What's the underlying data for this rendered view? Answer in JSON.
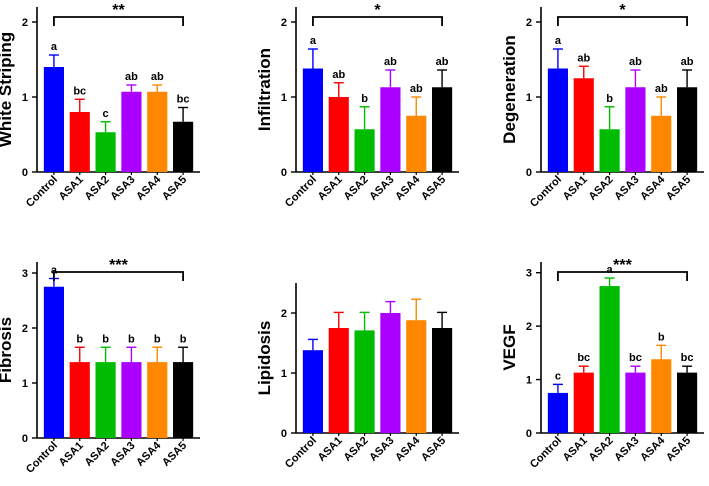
{
  "colors": {
    "Control": "#0000ff",
    "ASA1": "#ff0000",
    "ASA2": "#00bb00",
    "ASA3": "#aa00ff",
    "ASA4": "#ff8800",
    "ASA5": "#000000"
  },
  "chart_data": [
    {
      "type": "bar",
      "title": "",
      "xlabel": "",
      "ylabel": "White Striping",
      "categories": [
        "Control",
        "ASA1",
        "ASA2",
        "ASA3",
        "ASA4",
        "ASA5"
      ],
      "values": [
        1.4,
        0.8,
        0.53,
        1.07,
        1.07,
        0.67
      ],
      "errors": [
        0.16,
        0.17,
        0.14,
        0.09,
        0.09,
        0.19
      ],
      "letters": [
        "a",
        "bc",
        "c",
        "ab",
        "ab",
        "bc"
      ],
      "ylim": [
        0,
        2.2
      ],
      "yticks": [
        0,
        1,
        2
      ],
      "significance": {
        "label": "**",
        "from": "Control",
        "to": "ASA5"
      }
    },
    {
      "type": "bar",
      "title": "",
      "xlabel": "",
      "ylabel": "Infiltration",
      "categories": [
        "Control",
        "ASA1",
        "ASA2",
        "ASA3",
        "ASA4",
        "ASA5"
      ],
      "values": [
        1.38,
        1.0,
        0.57,
        1.13,
        0.75,
        1.13
      ],
      "errors": [
        0.26,
        0.19,
        0.3,
        0.23,
        0.25,
        0.23
      ],
      "letters": [
        "a",
        "ab",
        "b",
        "ab",
        "ab",
        "ab"
      ],
      "ylim": [
        0,
        2.2
      ],
      "yticks": [
        0,
        1,
        2
      ],
      "significance": {
        "label": "*",
        "from": "Control",
        "to": "ASA5"
      }
    },
    {
      "type": "bar",
      "title": "",
      "xlabel": "",
      "ylabel": "Degeneration",
      "categories": [
        "Control",
        "ASA1",
        "ASA2",
        "ASA3",
        "ASA4",
        "ASA5"
      ],
      "values": [
        1.38,
        1.25,
        0.57,
        1.13,
        0.75,
        1.13
      ],
      "errors": [
        0.26,
        0.16,
        0.3,
        0.23,
        0.25,
        0.23
      ],
      "letters": [
        "a",
        "ab",
        "b",
        "ab",
        "ab",
        "ab"
      ],
      "ylim": [
        0,
        2.2
      ],
      "yticks": [
        0,
        1,
        2
      ],
      "significance": {
        "label": "*",
        "from": "Control",
        "to": "ASA5"
      }
    },
    {
      "type": "bar",
      "title": "",
      "xlabel": "",
      "ylabel": "Fibrosis",
      "categories": [
        "Control",
        "ASA1",
        "ASA2",
        "ASA3",
        "ASA4",
        "ASA5"
      ],
      "values": [
        2.75,
        1.38,
        1.38,
        1.38,
        1.38,
        1.38
      ],
      "errors": [
        0.15,
        0.27,
        0.27,
        0.27,
        0.27,
        0.27
      ],
      "letters": [
        "a",
        "b",
        "b",
        "b",
        "b",
        "b"
      ],
      "ylim": [
        0,
        3.2
      ],
      "yticks": [
        0,
        1,
        2,
        3
      ],
      "significance": {
        "label": "***",
        "from": "Control",
        "to": "ASA5"
      }
    },
    {
      "type": "bar",
      "title": "",
      "xlabel": "",
      "ylabel": "Lipidosis",
      "categories": [
        "Control",
        "ASA1",
        "ASA2",
        "ASA3",
        "ASA4",
        "ASA5"
      ],
      "values": [
        1.38,
        1.75,
        1.71,
        2.0,
        1.88,
        1.75
      ],
      "errors": [
        0.18,
        0.26,
        0.3,
        0.19,
        0.35,
        0.26
      ],
      "letters": [
        "",
        "",
        "",
        "",
        "",
        ""
      ],
      "ylim": [
        0,
        2.5
      ],
      "yticks": [
        0,
        1,
        2
      ],
      "significance": null
    },
    {
      "type": "bar",
      "title": "",
      "xlabel": "",
      "ylabel": "VEGF",
      "categories": [
        "Control",
        "ASA1",
        "ASA2",
        "ASA3",
        "ASA4",
        "ASA5"
      ],
      "values": [
        0.75,
        1.13,
        2.75,
        1.13,
        1.38,
        1.13
      ],
      "errors": [
        0.16,
        0.12,
        0.15,
        0.12,
        0.26,
        0.12
      ],
      "letters": [
        "c",
        "bc",
        "a",
        "bc",
        "b",
        "bc"
      ],
      "ylim": [
        0,
        3.2
      ],
      "yticks": [
        0,
        1,
        2,
        3
      ],
      "significance": {
        "label": "***",
        "from": "Control",
        "to": "ASA5"
      }
    }
  ]
}
